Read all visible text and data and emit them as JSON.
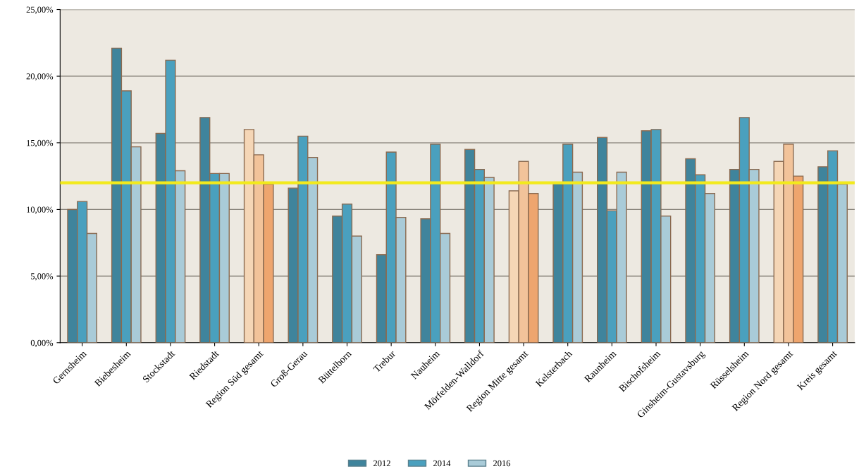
{
  "chart_data": {
    "type": "bar",
    "categories": [
      "Gernsheim",
      "Biebesheim",
      "Stockstadt",
      "Riedstadt",
      "Region Süd gesamt",
      "Groß-Gerau",
      "Büttelborn",
      "Trebur",
      "Nauheim",
      "Mörfelden-Walldorf",
      "Region Mitte gesamt",
      "Kelsterbach",
      "Raunheim",
      "Bischofsheim",
      "Ginsheim-Gustavsburg",
      "Rüsselsheim",
      "Region Nord gesamt",
      "Kreis gesamt"
    ],
    "series": [
      {
        "name": "2012",
        "color": "#3f849c",
        "colors": [
          "#3f849c",
          "#3f849c",
          "#3f849c",
          "#3f849c",
          "#f5d6b6",
          "#3f849c",
          "#3f849c",
          "#3f849c",
          "#3f849c",
          "#3f849c",
          "#f5d6b6",
          "#3f849c",
          "#3f849c",
          "#3f849c",
          "#3f849c",
          "#3f849c",
          "#f5d6b6",
          "#3f849c"
        ],
        "values": [
          10.0,
          22.1,
          15.7,
          16.9,
          16.0,
          11.6,
          9.5,
          6.6,
          9.3,
          14.5,
          11.4,
          12.0,
          15.4,
          15.9,
          13.8,
          13.0,
          13.6,
          13.2
        ]
      },
      {
        "name": "2014",
        "color": "#4aa0be",
        "colors": [
          "#4aa0be",
          "#4aa0be",
          "#4aa0be",
          "#4aa0be",
          "#f2c39a",
          "#4aa0be",
          "#4aa0be",
          "#4aa0be",
          "#4aa0be",
          "#4aa0be",
          "#f2c39a",
          "#4aa0be",
          "#4aa0be",
          "#4aa0be",
          "#4aa0be",
          "#4aa0be",
          "#f2c39a",
          "#4aa0be"
        ],
        "values": [
          10.6,
          18.9,
          21.2,
          12.7,
          14.1,
          15.5,
          10.4,
          14.3,
          14.9,
          13.0,
          13.6,
          14.9,
          9.9,
          16.0,
          12.6,
          16.9,
          14.9,
          14.4
        ]
      },
      {
        "name": "2016",
        "color": "#a9cbd8",
        "colors": [
          "#a9cbd8",
          "#a9cbd8",
          "#a9cbd8",
          "#a9cbd8",
          "#eea56e",
          "#a9cbd8",
          "#a9cbd8",
          "#a9cbd8",
          "#a9cbd8",
          "#a9cbd8",
          "#eea56e",
          "#a9cbd8",
          "#a9cbd8",
          "#a9cbd8",
          "#a9cbd8",
          "#a9cbd8",
          "#eea56e",
          "#a9cbd8"
        ],
        "values": [
          8.2,
          14.7,
          12.9,
          12.7,
          11.9,
          13.9,
          8.0,
          9.4,
          8.2,
          12.4,
          11.2,
          12.8,
          12.8,
          9.5,
          11.2,
          13.0,
          12.5,
          11.9
        ]
      }
    ],
    "ylim": [
      0,
      25
    ],
    "yticks": [
      {
        "value": 0,
        "label": "0,00%"
      },
      {
        "value": 5,
        "label": "5,00%"
      },
      {
        "value": 10,
        "label": "10,00%"
      },
      {
        "value": 15,
        "label": "15,00%"
      },
      {
        "value": 20,
        "label": "20,00%"
      },
      {
        "value": 25,
        "label": "25,00%"
      }
    ],
    "ref_lines": [
      {
        "axis": "y",
        "value": 12.0,
        "color": "#f2ea1c"
      }
    ],
    "grid": "y",
    "legend": "bottom"
  }
}
